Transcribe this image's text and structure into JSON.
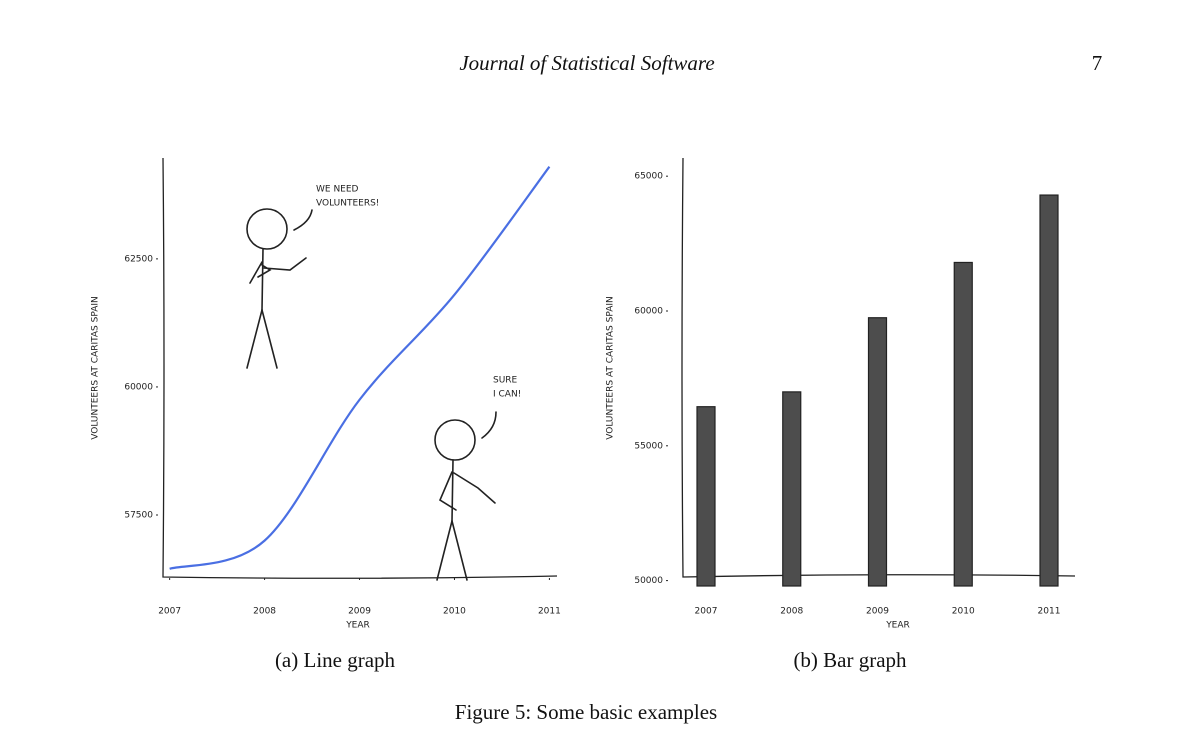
{
  "header": {
    "journal": "Journal of Statistical Software",
    "page": "7"
  },
  "chart_data": [
    {
      "type": "line",
      "x": [
        2007,
        2008,
        2009,
        2010,
        2011
      ],
      "values": [
        56450,
        57000,
        59750,
        61800,
        64300
      ],
      "color": "#4a6fe3",
      "xlim": [
        2006.93,
        2011.08
      ],
      "xticks": [
        2007,
        2008,
        2009,
        2010,
        2011
      ],
      "ylim": [
        56290,
        64430
      ],
      "yticks": [
        57500,
        60000,
        62500
      ],
      "xlabel": "YEAR",
      "ylabel": "VOLUNTEERS AT CARITAS SPAIN",
      "annotations": [
        [
          "WE NEED",
          "VOLUNTEERS!"
        ],
        [
          "SURE",
          "I CAN!"
        ]
      ],
      "caption": "(a) Line graph"
    },
    {
      "type": "bar",
      "categories": [
        "2007",
        "2008",
        "2009",
        "2010",
        "2011"
      ],
      "values": [
        56450,
        57000,
        59750,
        61800,
        64300
      ],
      "color": "#4d4d4d",
      "ylim": [
        49800,
        65600
      ],
      "yticks": [
        50000,
        55000,
        60000,
        65000
      ],
      "xlabel": "YEAR",
      "ylabel": "VOLUNTEERS AT CARITAS SPAIN",
      "caption": "(b) Bar graph"
    }
  ],
  "figure_caption": "Figure 5: Some basic examples"
}
